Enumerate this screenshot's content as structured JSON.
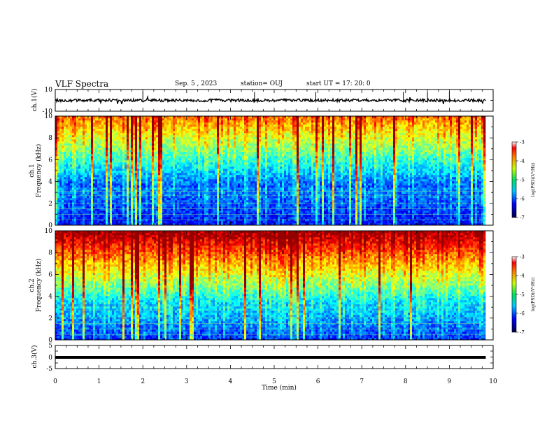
{
  "header": {
    "title": "VLF Spectra",
    "date": "Sep. 5 , 2023",
    "station": "station= OUJ",
    "start": "start  UT =   17: 20: 0"
  },
  "colors": {
    "spectrum_low": "#00008b",
    "spectrum_mid": "#00cc44",
    "spectrum_high": "#ff2a00",
    "trace": "#000000"
  },
  "chart_data": [
    {
      "type": "line",
      "panel": "ch1-waveform",
      "ylabel": "ch.1(V)",
      "ylim": [
        -10,
        10
      ],
      "yticklabels": [
        "10",
        "-10"
      ],
      "x": [
        0,
        1,
        2,
        3,
        4,
        5,
        6,
        7,
        8,
        9,
        9.83
      ],
      "series": [
        {
          "values": [
            0,
            0,
            0,
            0,
            0,
            0,
            0,
            0,
            0,
            0,
            0
          ]
        }
      ],
      "xlim": [
        0,
        10
      ]
    },
    {
      "type": "heatmap",
      "panel": "ch1-spectrogram",
      "ylabel": "ch.1\nFrequency (kHz)",
      "ylim": [
        0,
        10
      ],
      "yticklabels": [
        "0",
        "2",
        "4",
        "6",
        "8",
        "10"
      ],
      "xlim": [
        0,
        10
      ],
      "colorbar": {
        "label": "log(PSD)(V²/Hz)",
        "range": [
          -7,
          -3
        ],
        "ticklabels": [
          "-3",
          "-4",
          "-5",
          "-6",
          "-7"
        ]
      }
    },
    {
      "type": "heatmap",
      "panel": "ch2-spectrogram",
      "ylabel": "ch.2\nFrequency (kHz)",
      "ylim": [
        0,
        10
      ],
      "yticklabels": [
        "0",
        "2",
        "4",
        "6",
        "8",
        "10"
      ],
      "xlim": [
        0,
        10
      ],
      "colorbar": {
        "label": "log(PSD)(V²/Hz)",
        "range": [
          -7,
          -3
        ],
        "ticklabels": [
          "-3",
          "-4",
          "-5",
          "-6",
          "-7"
        ]
      }
    },
    {
      "type": "line",
      "panel": "ch3-waveform",
      "ylabel": "ch.3(V)",
      "ylim": [
        -5,
        5
      ],
      "yticklabels": [
        "5",
        "0",
        "-5"
      ],
      "x": [
        0,
        9.83
      ],
      "series": [
        {
          "values": [
            0,
            0
          ]
        }
      ],
      "xlim": [
        0,
        10
      ]
    }
  ],
  "xaxis": {
    "label": "Time (min)",
    "ticklabels": [
      "0",
      "1",
      "2",
      "3",
      "4",
      "5",
      "6",
      "7",
      "8",
      "9",
      "10"
    ]
  }
}
